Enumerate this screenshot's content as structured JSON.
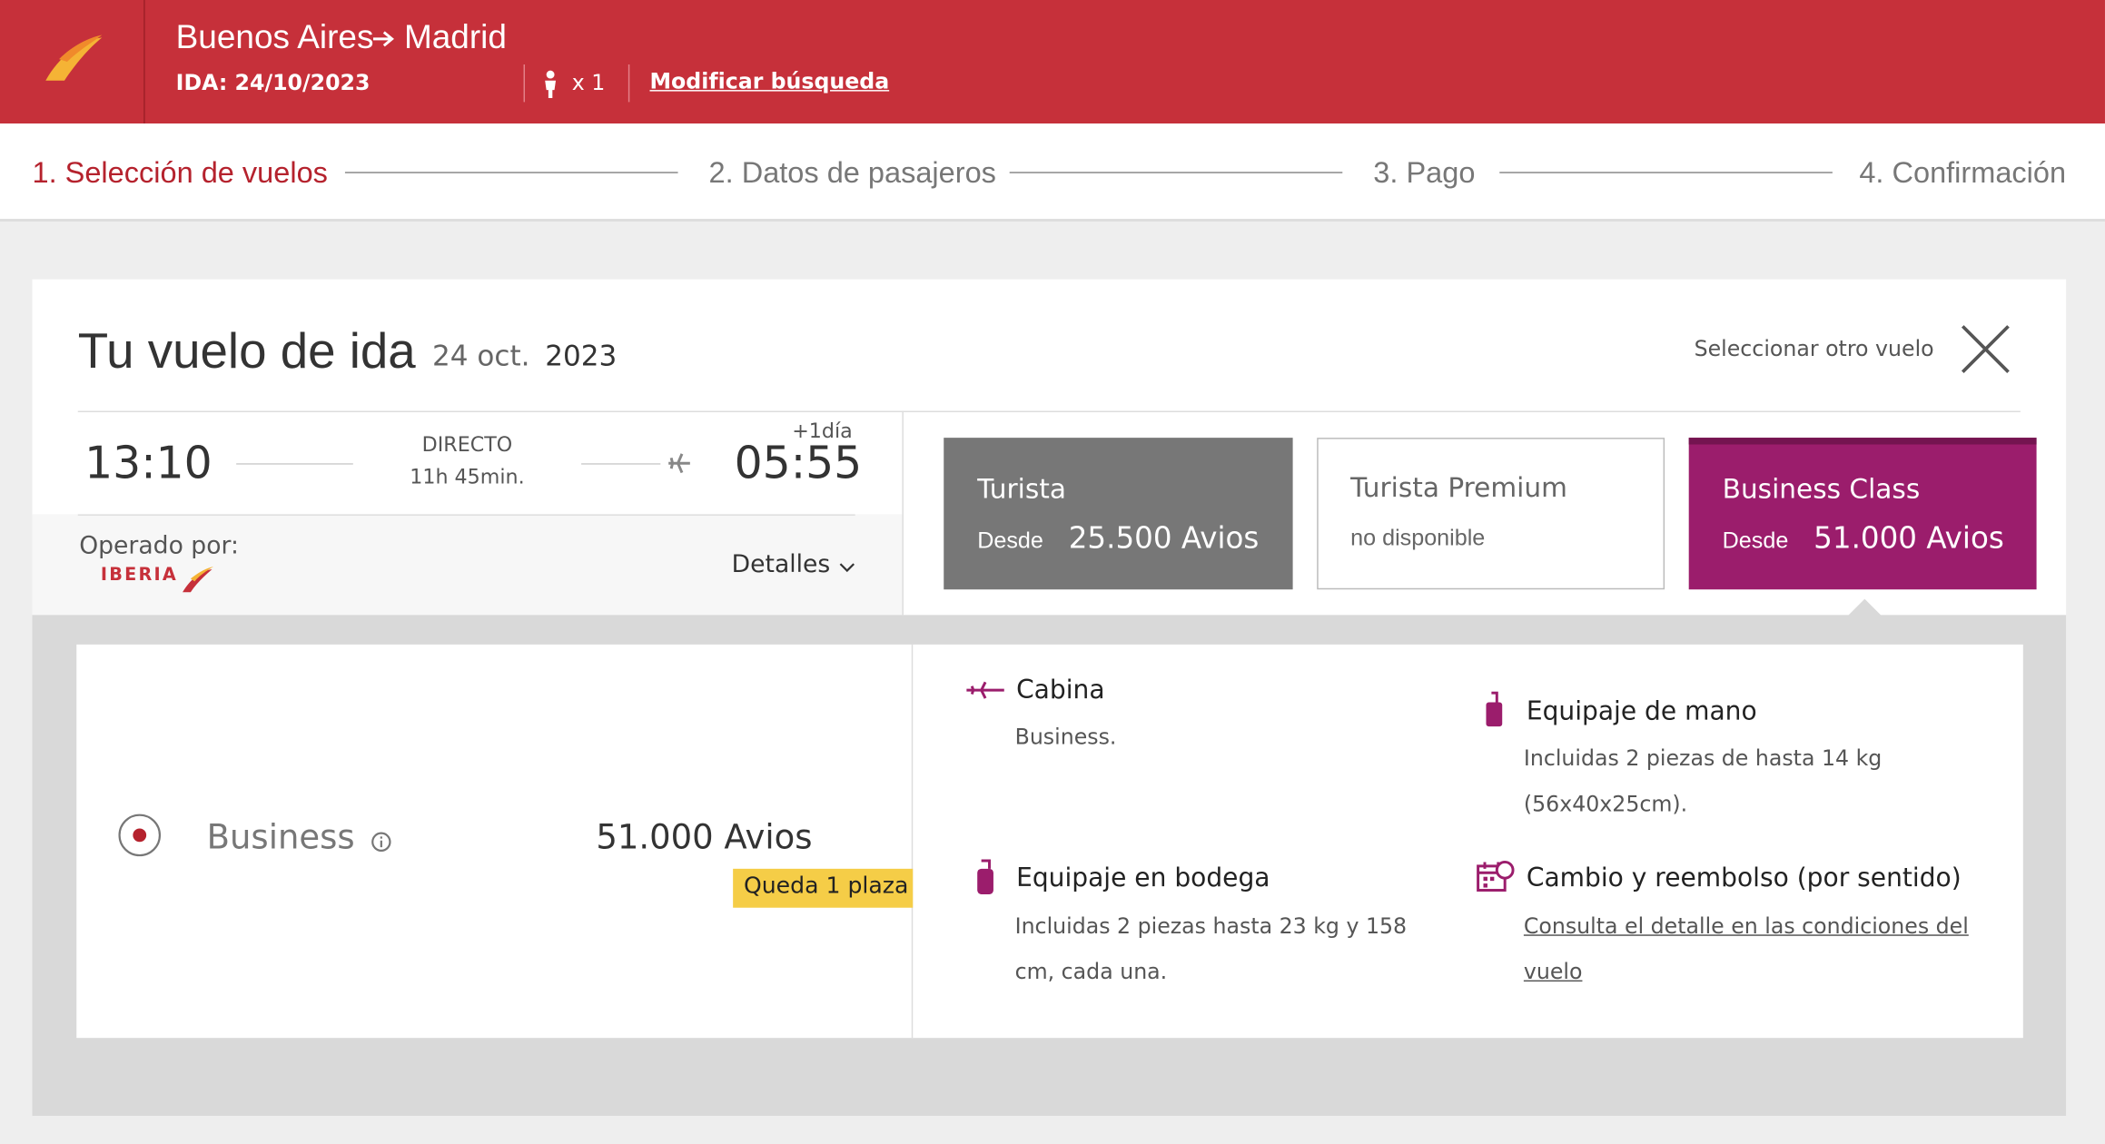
{
  "header": {
    "origin": "Buenos Aires",
    "destination": "Madrid",
    "date": "IDA: 24/10/2023",
    "passengers": "x 1",
    "modify": "Modificar búsqueda"
  },
  "steps": [
    "1. Selección de vuelos",
    "2. Datos de pasajeros",
    "3. Pago",
    "4. Confirmación"
  ],
  "flight": {
    "title": "Tu vuelo de ida",
    "date_day": "24 oct.",
    "date_year": "2023",
    "select_other": "Seleccionar otro vuelo",
    "depart": "13:10",
    "kind": "DIRECTO",
    "duration": "11h 45min.",
    "next_day": "+1día",
    "arrive": "05:55",
    "operated_by": "Operado por:",
    "airline": "IBERIA",
    "details": "Detalles"
  },
  "fares": [
    {
      "name": "Turista",
      "from": "Desde",
      "price": "25.500 Avios"
    },
    {
      "name": "Turista Premium",
      "status": "no disponible"
    },
    {
      "name": "Business Class",
      "from": "Desde",
      "price": "51.000 Avios"
    }
  ],
  "option": {
    "name": "Business",
    "price": "51.000 Avios",
    "seats": "Queda 1 plaza"
  },
  "features": [
    {
      "title": "Cabina",
      "lines": [
        "Business."
      ]
    },
    {
      "title": "Equipaje de mano",
      "lines": [
        "Incluidas 2 piezas de hasta 14 kg",
        "(56x40x25cm)."
      ]
    },
    {
      "title": "Equipaje en bodega",
      "lines": [
        "Incluidas 2 piezas hasta 23 kg y 158",
        "cm, cada una."
      ]
    },
    {
      "title": "Cambio y reembolso (por sentido)",
      "lines": [
        "Consulta el detalle en las condiciones del",
        "vuelo"
      ]
    }
  ]
}
